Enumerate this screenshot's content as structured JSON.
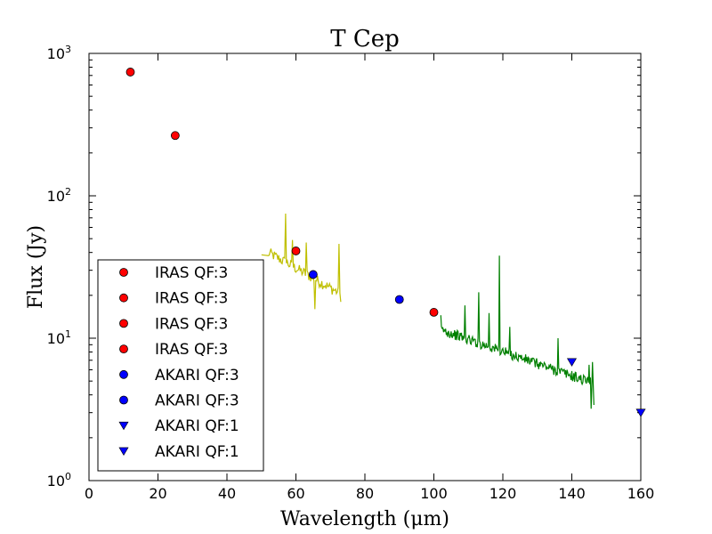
{
  "chart_data": {
    "type": "scatter",
    "title": "T Cep",
    "xlabel": "Wavelength (μm)",
    "ylabel": "Flux (Jy)",
    "xlim": [
      0,
      160
    ],
    "ylim": [
      1,
      1000
    ],
    "yscale": "log",
    "x_ticks": [
      "0",
      "20",
      "40",
      "60",
      "80",
      "100",
      "120",
      "140",
      "160"
    ],
    "y_ticks": [
      {
        "base": "10",
        "exp": "0"
      },
      {
        "base": "10",
        "exp": "1"
      },
      {
        "base": "10",
        "exp": "2"
      },
      {
        "base": "10",
        "exp": "3"
      }
    ],
    "legend_position": "lower-left",
    "series": [
      {
        "name": "IRAS QF:3",
        "marker": "circle",
        "color": "#ff0000",
        "x": [
          12
        ],
        "y": [
          740
        ]
      },
      {
        "name": "IRAS QF:3",
        "marker": "circle",
        "color": "#ff0000",
        "x": [
          25
        ],
        "y": [
          265
        ]
      },
      {
        "name": "IRAS QF:3",
        "marker": "circle",
        "color": "#ff0000",
        "x": [
          60
        ],
        "y": [
          41
        ]
      },
      {
        "name": "IRAS QF:3",
        "marker": "circle",
        "color": "#ff0000",
        "x": [
          100
        ],
        "y": [
          15.2
        ]
      },
      {
        "name": "AKARI QF:3",
        "marker": "circle",
        "color": "#0000ff",
        "x": [
          65
        ],
        "y": [
          28
        ]
      },
      {
        "name": "AKARI QF:3",
        "marker": "circle",
        "color": "#0000ff",
        "x": [
          90
        ],
        "y": [
          18.7
        ]
      },
      {
        "name": "AKARI QF:1",
        "marker": "triangle-down",
        "color": "#0000ff",
        "x": [
          140
        ],
        "y": [
          6.8
        ]
      },
      {
        "name": "AKARI QF:1",
        "marker": "triangle-down",
        "color": "#0000ff",
        "x": [
          160
        ],
        "y": [
          3.0
        ]
      }
    ],
    "spectra": [
      {
        "name": "spectrum-yellow",
        "color": "#bfbf00",
        "x_start": 52,
        "x_end": 73,
        "x_step": 0.25,
        "y_start": 40,
        "y_end": 20.5,
        "noise": 0.09,
        "spikes": [
          {
            "x": 52,
            "y": 38
          },
          {
            "x": 57,
            "y": 75
          },
          {
            "x": 59,
            "y": 49
          },
          {
            "x": 63,
            "y": 47
          },
          {
            "x": 65.5,
            "y": 16
          },
          {
            "x": 72.5,
            "y": 46
          },
          {
            "x": 73,
            "y": 18
          }
        ]
      },
      {
        "name": "spectrum-green",
        "color": "#008000",
        "x_start": 102,
        "x_end": 146.5,
        "x_step": 0.2,
        "y_start": 11.5,
        "y_end": 4.8,
        "noise": 0.085,
        "spikes": [
          {
            "x": 102,
            "y": 14.5
          },
          {
            "x": 109,
            "y": 17
          },
          {
            "x": 113,
            "y": 21
          },
          {
            "x": 116,
            "y": 15
          },
          {
            "x": 119,
            "y": 38
          },
          {
            "x": 122,
            "y": 12
          },
          {
            "x": 136,
            "y": 10
          },
          {
            "x": 145,
            "y": 6.5
          },
          {
            "x": 145.5,
            "y": 3.2
          },
          {
            "x": 146,
            "y": 6.8
          },
          {
            "x": 146.3,
            "y": 3.4
          }
        ]
      }
    ]
  }
}
